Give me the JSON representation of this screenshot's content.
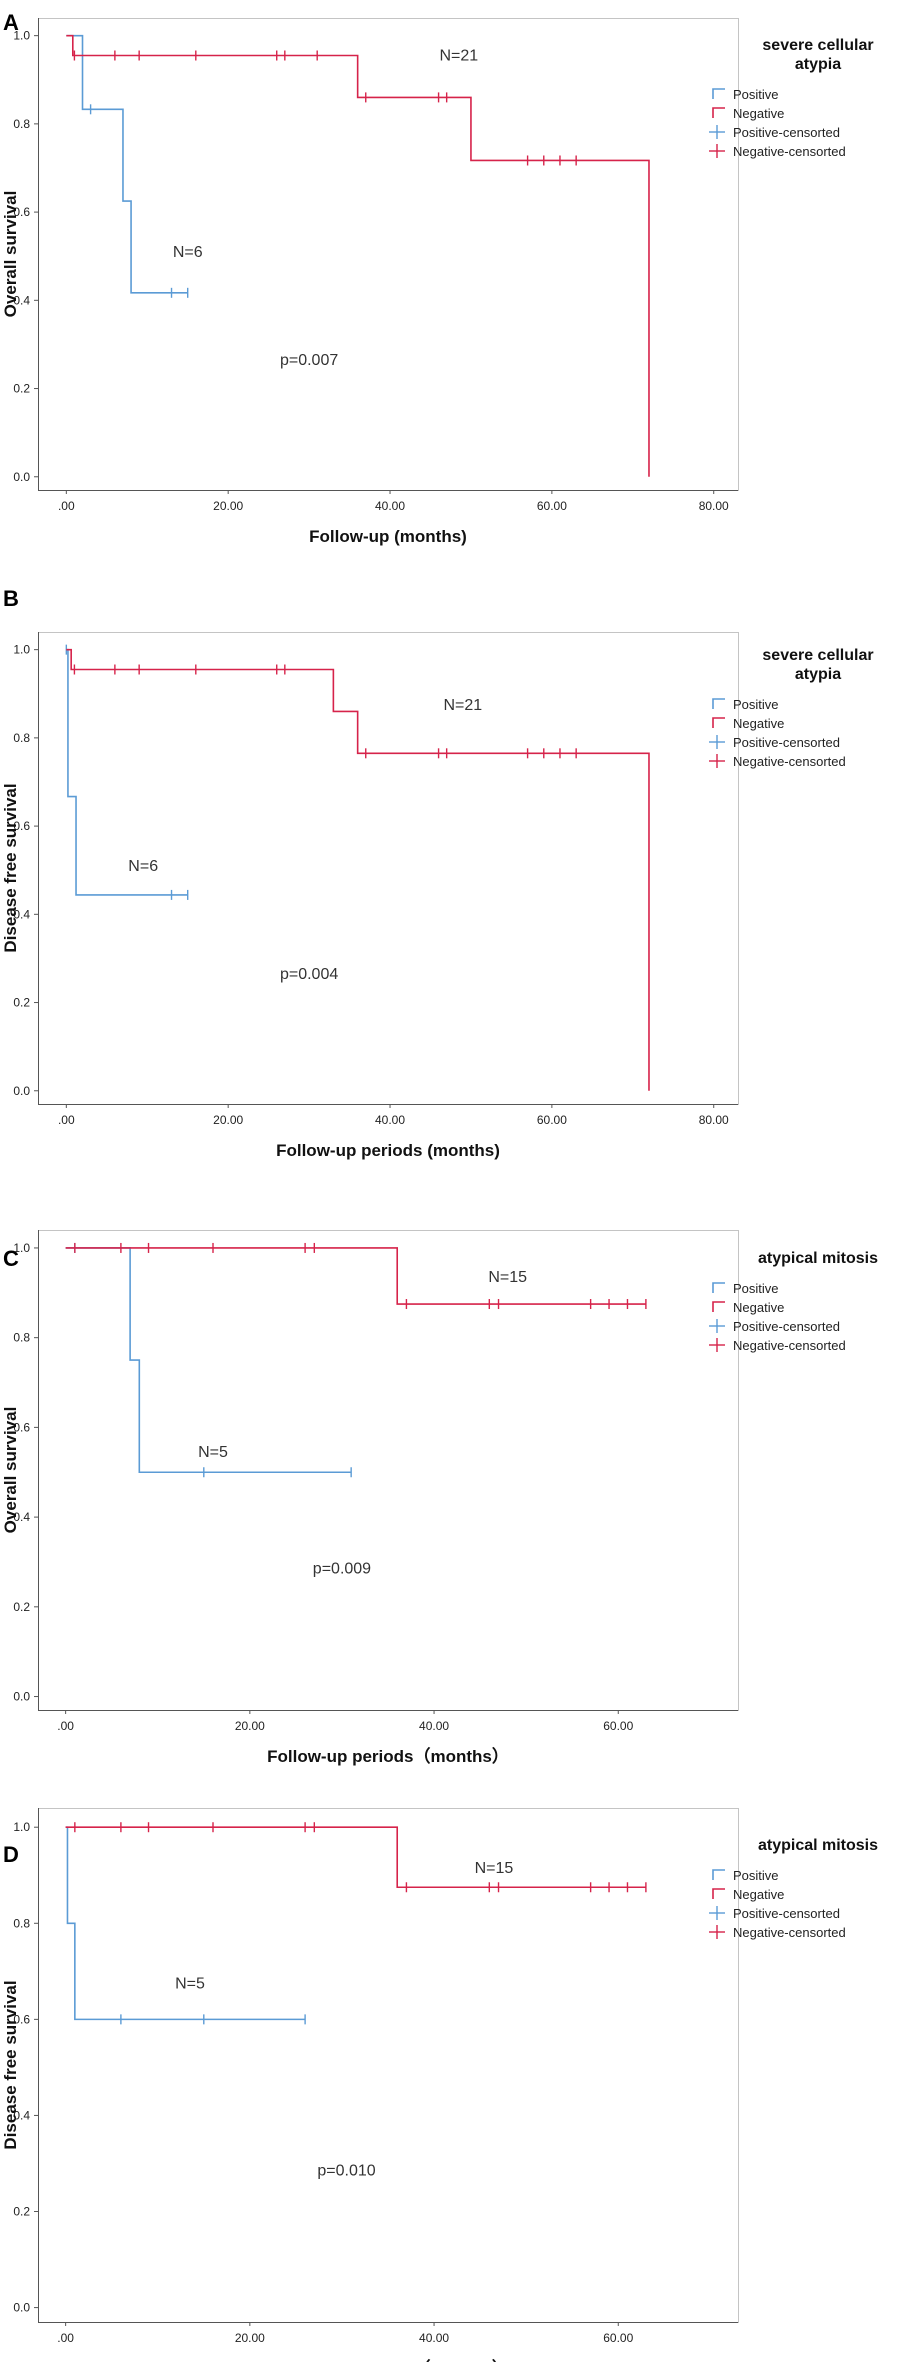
{
  "legend_items": [
    "Positive",
    "Negative",
    "Positive-censorted",
    "Negative-censorted"
  ],
  "colors": {
    "positive": "#5B9BD5",
    "negative": "#D6234A",
    "axis": "#555555",
    "text": "#222222"
  },
  "chart_data": [
    {
      "panel_letter": "A",
      "type": "line",
      "step": true,
      "ylabel": "Overall survival",
      "xlabel": "Follow-up (months)",
      "xlim": [
        -3.5,
        83
      ],
      "ylim": [
        -0.03,
        1.04
      ],
      "xticks": [
        0,
        20,
        40,
        60,
        80
      ],
      "xtick_labels": [
        ".00",
        "20.00",
        "40.00",
        "60.00",
        "80.00"
      ],
      "yticks": [
        0,
        0.2,
        0.4,
        0.6,
        0.8,
        1.0
      ],
      "ytick_labels": [
        "0.0",
        "0.2",
        "0.4",
        "0.6",
        "0.8",
        "1.0"
      ],
      "legend_title": [
        "severe cellular",
        "atypia"
      ],
      "annotations": [
        {
          "text": "N=21",
          "x": 48.5,
          "y": 0.955
        },
        {
          "text": "N=6",
          "x": 15.0,
          "y": 0.51
        },
        {
          "text": "p=0.007",
          "x": 30.0,
          "y": 0.265
        }
      ],
      "series": [
        {
          "name": "Positive",
          "color": "#5B9BD5",
          "steps": [
            [
              0,
              1.0
            ],
            [
              2.0,
              0.833
            ],
            [
              7.0,
              0.625
            ],
            [
              8.0,
              0.417
            ],
            [
              15.0,
              0.417
            ]
          ],
          "censored": [
            [
              3.0,
              0.833
            ],
            [
              13.0,
              0.417
            ],
            [
              15.0,
              0.417
            ]
          ]
        },
        {
          "name": "Negative",
          "color": "#D6234A",
          "steps": [
            [
              0,
              1.0
            ],
            [
              0.8,
              0.955
            ],
            [
              36.0,
              0.86
            ],
            [
              50.0,
              0.717
            ],
            [
              72.0,
              0.0
            ]
          ],
          "censored": [
            [
              1.0,
              0.955
            ],
            [
              6.0,
              0.955
            ],
            [
              9.0,
              0.955
            ],
            [
              16.0,
              0.955
            ],
            [
              26.0,
              0.955
            ],
            [
              27.0,
              0.955
            ],
            [
              31.0,
              0.955
            ],
            [
              37.0,
              0.86
            ],
            [
              46.0,
              0.86
            ],
            [
              47.0,
              0.86
            ],
            [
              57.0,
              0.717
            ],
            [
              59.0,
              0.717
            ],
            [
              61.0,
              0.717
            ],
            [
              63.0,
              0.717
            ]
          ]
        }
      ]
    },
    {
      "panel_letter": "B",
      "type": "line",
      "step": true,
      "ylabel": "Disease free survival",
      "xlabel": "Follow-up periods (months)",
      "xlim": [
        -3.5,
        83
      ],
      "ylim": [
        -0.03,
        1.04
      ],
      "xticks": [
        0,
        20,
        40,
        60,
        80
      ],
      "xtick_labels": [
        ".00",
        "20.00",
        "40.00",
        "60.00",
        "80.00"
      ],
      "yticks": [
        0,
        0.2,
        0.4,
        0.6,
        0.8,
        1.0
      ],
      "ytick_labels": [
        "0.0",
        "0.2",
        "0.4",
        "0.6",
        "0.8",
        "1.0"
      ],
      "legend_title": [
        "severe cellular",
        "atypia"
      ],
      "annotations": [
        {
          "text": "N=21",
          "x": 49.0,
          "y": 0.875
        },
        {
          "text": "N=6",
          "x": 9.5,
          "y": 0.51
        },
        {
          "text": "p=0.004",
          "x": 30.0,
          "y": 0.265
        }
      ],
      "series": [
        {
          "name": "Positive",
          "color": "#5B9BD5",
          "steps": [
            [
              0,
              1.0
            ],
            [
              0.2,
              0.667
            ],
            [
              1.2,
              0.444
            ],
            [
              15.0,
              0.444
            ]
          ],
          "censored": [
            [
              0.0,
              1.0
            ],
            [
              13.0,
              0.444
            ],
            [
              15.0,
              0.444
            ]
          ]
        },
        {
          "name": "Negative",
          "color": "#D6234A",
          "steps": [
            [
              0,
              1.0
            ],
            [
              0.6,
              0.955
            ],
            [
              33.0,
              0.86
            ],
            [
              36.0,
              0.765
            ],
            [
              72.0,
              0.0
            ]
          ],
          "censored": [
            [
              1.0,
              0.955
            ],
            [
              6.0,
              0.955
            ],
            [
              9.0,
              0.955
            ],
            [
              16.0,
              0.955
            ],
            [
              26.0,
              0.955
            ],
            [
              27.0,
              0.955
            ],
            [
              37.0,
              0.765
            ],
            [
              46.0,
              0.765
            ],
            [
              47.0,
              0.765
            ],
            [
              57.0,
              0.765
            ],
            [
              59.0,
              0.765
            ],
            [
              61.0,
              0.765
            ],
            [
              63.0,
              0.765
            ]
          ]
        }
      ]
    },
    {
      "panel_letter": "C",
      "type": "line",
      "step": true,
      "ylabel": "Overall survival",
      "xlabel": "Follow-up periods（months）",
      "xlim": [
        -3.0,
        73
      ],
      "ylim": [
        -0.03,
        1.04
      ],
      "xticks": [
        0,
        20,
        40,
        60
      ],
      "xtick_labels": [
        ".00",
        "20.00",
        "40.00",
        "60.00"
      ],
      "yticks": [
        0,
        0.2,
        0.4,
        0.6,
        0.8,
        1.0
      ],
      "ytick_labels": [
        "0.0",
        "0.2",
        "0.4",
        "0.6",
        "0.8",
        "1.0"
      ],
      "legend_title": [
        "atypical mitosis"
      ],
      "annotations": [
        {
          "text": "N=15",
          "x": 48.0,
          "y": 0.935
        },
        {
          "text": "N=5",
          "x": 16.0,
          "y": 0.545
        },
        {
          "text": "p=0.009",
          "x": 30.0,
          "y": 0.285
        }
      ],
      "series": [
        {
          "name": "Positive",
          "color": "#5B9BD5",
          "steps": [
            [
              0,
              1.0
            ],
            [
              7.0,
              0.75
            ],
            [
              8.0,
              0.5
            ],
            [
              31.0,
              0.5
            ]
          ],
          "censored": [
            [
              1.0,
              1.0
            ],
            [
              15.0,
              0.5
            ],
            [
              31.0,
              0.5
            ]
          ]
        },
        {
          "name": "Negative",
          "color": "#D6234A",
          "steps": [
            [
              0,
              1.0
            ],
            [
              36.0,
              0.875
            ],
            [
              63.0,
              0.875
            ]
          ],
          "censored": [
            [
              1.0,
              1.0
            ],
            [
              6.0,
              1.0
            ],
            [
              9.0,
              1.0
            ],
            [
              16.0,
              1.0
            ],
            [
              26.0,
              1.0
            ],
            [
              27.0,
              1.0
            ],
            [
              37.0,
              0.875
            ],
            [
              46.0,
              0.875
            ],
            [
              47.0,
              0.875
            ],
            [
              57.0,
              0.875
            ],
            [
              59.0,
              0.875
            ],
            [
              61.0,
              0.875
            ],
            [
              63.0,
              0.875
            ]
          ]
        }
      ]
    },
    {
      "panel_letter": "D",
      "type": "line",
      "step": true,
      "ylabel": "Disease free survival",
      "xlabel": "Follow-up periods（months）",
      "xlim": [
        -3.0,
        73
      ],
      "ylim": [
        -0.03,
        1.04
      ],
      "xticks": [
        0,
        20,
        40,
        60
      ],
      "xtick_labels": [
        ".00",
        "20.00",
        "40.00",
        "60.00"
      ],
      "yticks": [
        0,
        0.2,
        0.4,
        0.6,
        0.8,
        1.0
      ],
      "ytick_labels": [
        "0.0",
        "0.2",
        "0.4",
        "0.6",
        "0.8",
        "1.0"
      ],
      "legend_title": [
        "atypical mitosis"
      ],
      "annotations": [
        {
          "text": "N=15",
          "x": 46.5,
          "y": 0.915
        },
        {
          "text": "N=5",
          "x": 13.5,
          "y": 0.675
        },
        {
          "text": "p=0.010",
          "x": 30.5,
          "y": 0.285
        }
      ],
      "series": [
        {
          "name": "Positive",
          "color": "#5B9BD5",
          "steps": [
            [
              0,
              1.0
            ],
            [
              0.2,
              0.8
            ],
            [
              1.0,
              0.6
            ],
            [
              26.0,
              0.6
            ]
          ],
          "censored": [
            [
              6.0,
              0.6
            ],
            [
              15.0,
              0.6
            ],
            [
              26.0,
              0.6
            ]
          ]
        },
        {
          "name": "Negative",
          "color": "#D6234A",
          "steps": [
            [
              0,
              1.0
            ],
            [
              36.0,
              0.875
            ],
            [
              63.0,
              0.875
            ]
          ],
          "censored": [
            [
              1.0,
              1.0
            ],
            [
              6.0,
              1.0
            ],
            [
              9.0,
              1.0
            ],
            [
              16.0,
              1.0
            ],
            [
              26.0,
              1.0
            ],
            [
              27.0,
              1.0
            ],
            [
              37.0,
              0.875
            ],
            [
              46.0,
              0.875
            ],
            [
              47.0,
              0.875
            ],
            [
              57.0,
              0.875
            ],
            [
              59.0,
              0.875
            ],
            [
              61.0,
              0.875
            ],
            [
              63.0,
              0.875
            ]
          ]
        }
      ]
    }
  ]
}
